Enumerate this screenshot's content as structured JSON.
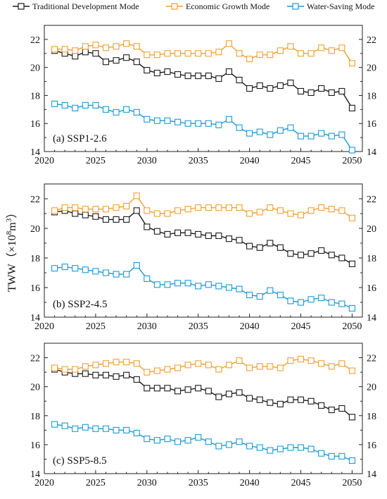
{
  "legend": [
    {
      "label": "Traditional Development Mode",
      "color": "#1a1a1a"
    },
    {
      "label": "Economic Growth Mode",
      "color": "#f0a030"
    },
    {
      "label": "Water-Saving Mode",
      "color": "#1a9ad6"
    }
  ],
  "ylabel": {
    "main": "TWW（×10",
    "sup1": "8",
    "mid": "m",
    "sup2": "3",
    "close": "）"
  },
  "chart_data": [
    {
      "type": "line",
      "panel_label": "(a) SSP1-2.6",
      "x": [
        2021,
        2022,
        2023,
        2024,
        2025,
        2026,
        2027,
        2028,
        2029,
        2030,
        2031,
        2032,
        2033,
        2034,
        2035,
        2036,
        2037,
        2038,
        2039,
        2040,
        2041,
        2042,
        2043,
        2044,
        2045,
        2046,
        2047,
        2048,
        2049,
        2050
      ],
      "xticks": [
        2020,
        2025,
        2030,
        2035,
        2040,
        2045,
        2050
      ],
      "ylim": [
        14,
        23
      ],
      "yticks": [
        14,
        16,
        18,
        20,
        22
      ],
      "series": [
        {
          "name": "Traditional Development Mode",
          "color": "#1a1a1a",
          "values": [
            21.2,
            21.0,
            20.8,
            21.1,
            21.0,
            20.4,
            20.5,
            20.7,
            20.4,
            19.8,
            19.6,
            19.7,
            19.5,
            19.4,
            19.4,
            19.4,
            19.2,
            19.7,
            19.1,
            18.5,
            18.7,
            18.5,
            18.7,
            18.9,
            18.3,
            18.2,
            18.5,
            18.2,
            18.3,
            17.1
          ]
        },
        {
          "name": "Economic Growth Mode",
          "color": "#f0a030",
          "values": [
            21.3,
            21.3,
            21.2,
            21.5,
            21.6,
            21.4,
            21.5,
            21.7,
            21.5,
            20.9,
            20.9,
            21.0,
            21.0,
            21.0,
            21.0,
            21.0,
            21.1,
            21.7,
            21.0,
            20.6,
            20.9,
            20.9,
            21.2,
            21.5,
            21.0,
            21.0,
            21.4,
            21.2,
            21.4,
            20.3
          ]
        },
        {
          "name": "Water-Saving Mode",
          "color": "#1a9ad6",
          "values": [
            17.4,
            17.3,
            17.1,
            17.3,
            17.3,
            17.0,
            16.8,
            17.0,
            16.8,
            16.3,
            16.2,
            16.2,
            16.1,
            16.0,
            16.0,
            16.0,
            15.9,
            16.3,
            15.7,
            15.3,
            15.4,
            15.2,
            15.5,
            15.7,
            15.1,
            15.1,
            15.3,
            15.1,
            15.2,
            14.1
          ]
        }
      ]
    },
    {
      "type": "line",
      "panel_label": "(b) SSP2-4.5",
      "x": [
        2021,
        2022,
        2023,
        2024,
        2025,
        2026,
        2027,
        2028,
        2029,
        2030,
        2031,
        2032,
        2033,
        2034,
        2035,
        2036,
        2037,
        2038,
        2039,
        2040,
        2041,
        2042,
        2043,
        2044,
        2045,
        2046,
        2047,
        2048,
        2049,
        2050
      ],
      "xticks": [
        2020,
        2025,
        2030,
        2035,
        2040,
        2045,
        2050
      ],
      "ylim": [
        14,
        23
      ],
      "yticks": [
        14,
        16,
        18,
        20,
        22
      ],
      "series": [
        {
          "name": "Traditional Development Mode",
          "color": "#1a1a1a",
          "values": [
            21.1,
            21.2,
            21.0,
            20.9,
            20.8,
            20.6,
            20.6,
            20.6,
            21.2,
            20.1,
            19.8,
            19.6,
            19.7,
            19.7,
            19.6,
            19.5,
            19.5,
            19.3,
            19.2,
            18.8,
            18.7,
            19.0,
            18.7,
            18.3,
            18.2,
            18.3,
            18.5,
            18.2,
            18.0,
            17.6
          ]
        },
        {
          "name": "Economic Growth Mode",
          "color": "#f0a030",
          "values": [
            21.2,
            21.4,
            21.4,
            21.3,
            21.3,
            21.3,
            21.4,
            21.5,
            22.2,
            21.2,
            21.0,
            21.0,
            21.2,
            21.3,
            21.4,
            21.4,
            21.4,
            21.4,
            21.4,
            21.0,
            21.1,
            21.4,
            21.2,
            21.0,
            20.9,
            21.2,
            21.4,
            21.3,
            21.2,
            20.7
          ]
        },
        {
          "name": "Water-Saving Mode",
          "color": "#1a9ad6",
          "values": [
            17.3,
            17.4,
            17.3,
            17.2,
            17.1,
            17.0,
            16.9,
            16.9,
            17.5,
            16.6,
            16.2,
            16.2,
            16.3,
            16.3,
            16.1,
            16.2,
            16.1,
            16.0,
            15.9,
            15.5,
            15.4,
            15.8,
            15.5,
            15.1,
            15.0,
            15.2,
            15.3,
            15.0,
            14.9,
            14.6
          ]
        }
      ]
    },
    {
      "type": "line",
      "panel_label": "(c) SSP5-8.5",
      "x": [
        2021,
        2022,
        2023,
        2024,
        2025,
        2026,
        2027,
        2028,
        2029,
        2030,
        2031,
        2032,
        2033,
        2034,
        2035,
        2036,
        2037,
        2038,
        2039,
        2040,
        2041,
        2042,
        2043,
        2044,
        2045,
        2046,
        2047,
        2048,
        2049,
        2050
      ],
      "xticks": [
        2020,
        2025,
        2030,
        2035,
        2040,
        2045,
        2050
      ],
      "ylim": [
        14,
        23
      ],
      "yticks": [
        14,
        16,
        18,
        20,
        22
      ],
      "series": [
        {
          "name": "Traditional Development Mode",
          "color": "#1a1a1a",
          "values": [
            21.2,
            21.0,
            20.9,
            20.9,
            20.8,
            20.8,
            20.7,
            20.8,
            20.5,
            19.9,
            19.9,
            19.9,
            19.7,
            19.8,
            19.9,
            19.7,
            19.3,
            19.5,
            19.6,
            19.2,
            19.1,
            18.9,
            18.8,
            19.1,
            19.1,
            19.0,
            18.7,
            18.4,
            18.5,
            17.9
          ]
        },
        {
          "name": "Economic Growth Mode",
          "color": "#f0a030",
          "values": [
            21.3,
            21.2,
            21.2,
            21.4,
            21.5,
            21.6,
            21.7,
            21.7,
            21.6,
            21.0,
            21.1,
            21.2,
            21.3,
            21.5,
            21.6,
            21.5,
            21.2,
            21.5,
            21.8,
            21.3,
            21.4,
            21.4,
            21.3,
            21.8,
            21.9,
            21.8,
            21.6,
            21.4,
            21.6,
            21.1
          ]
        },
        {
          "name": "Water-Saving Mode",
          "color": "#1a9ad6",
          "values": [
            17.4,
            17.3,
            17.1,
            17.2,
            17.1,
            17.1,
            17.0,
            17.0,
            16.8,
            16.4,
            16.3,
            16.4,
            16.2,
            16.3,
            16.5,
            16.2,
            15.9,
            16.0,
            16.2,
            15.9,
            15.8,
            15.6,
            15.7,
            15.8,
            15.8,
            15.7,
            15.4,
            15.2,
            15.2,
            14.9
          ]
        }
      ]
    }
  ]
}
